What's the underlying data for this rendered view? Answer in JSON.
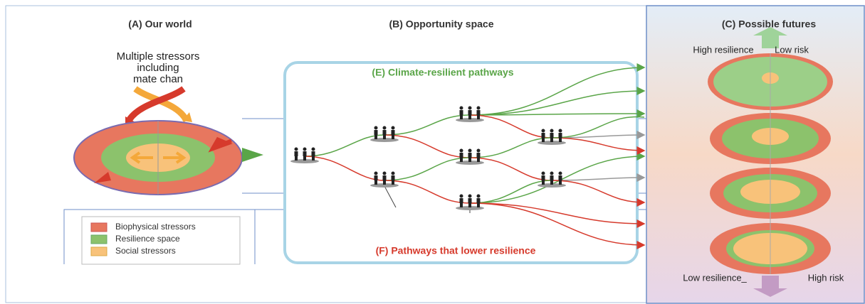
{
  "panels": [
    {
      "title": "(A) Our world"
    },
    {
      "title": "(B) Opportunity space"
    },
    {
      "title": "(C) Possible futures"
    }
  ],
  "stressor_label": [
    "Multiple stressors",
    "including",
    "mate chan"
  ],
  "pathways": {
    "resilient": "(E) Climate-resilient pathways",
    "lowering": "(F) Pathways that lower resilience"
  },
  "futures": {
    "top_left": "High resilience",
    "top_right": "Low risk",
    "bottom_left": "Low resilience_",
    "bottom_right": "High risk"
  },
  "legend": [
    "Biophysical stressors",
    "Resilience space",
    "Social stressors"
  ]
}
